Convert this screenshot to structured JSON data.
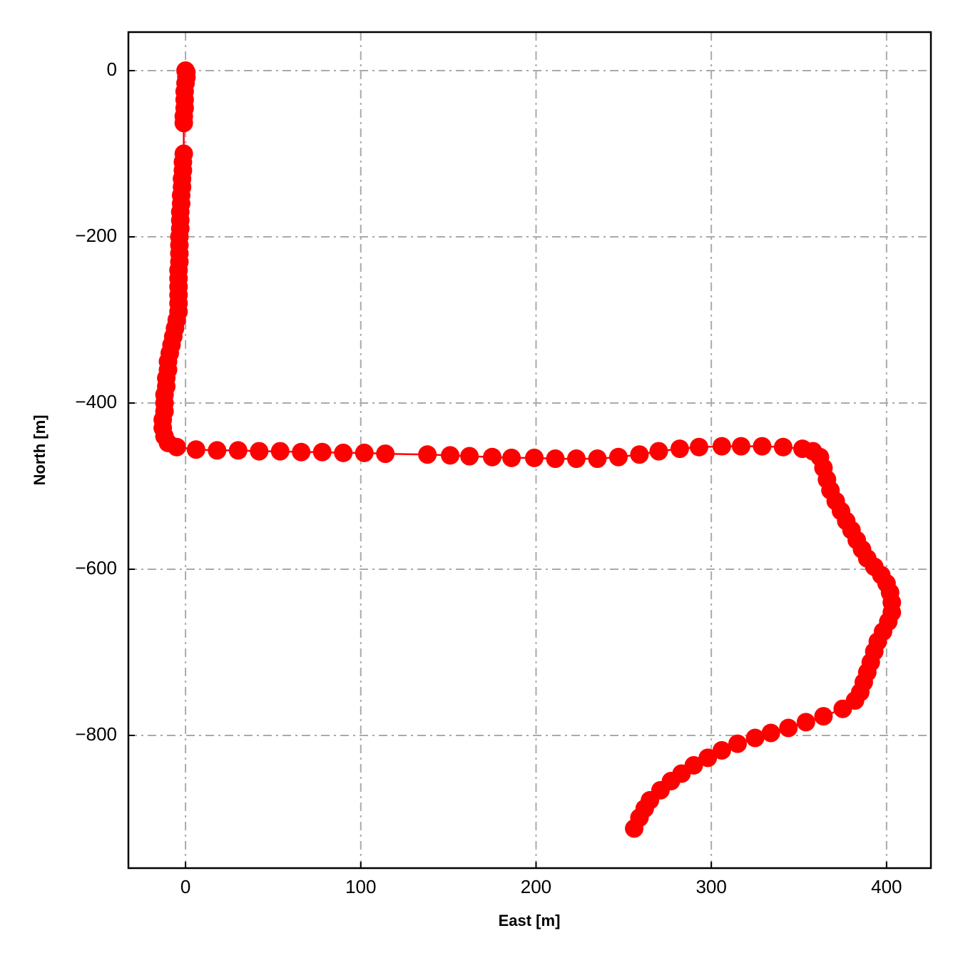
{
  "chart_data": {
    "type": "line",
    "xlabel": "East [m]",
    "ylabel": "North [m]",
    "color": "#ff0000",
    "markers": true,
    "grid": true,
    "xlim": [
      -32.6,
      425.3
    ],
    "ylim": [
      -959.7,
      46.4
    ],
    "xticks": [
      0,
      100,
      200,
      300,
      400
    ],
    "yticks": [
      {
        "value": -800,
        "label": "−800"
      },
      {
        "value": -600,
        "label": "−600"
      },
      {
        "value": -400,
        "label": "−400"
      },
      {
        "value": -200,
        "label": "−200"
      },
      0
    ],
    "x": [
      0,
      0.5,
      0.5,
      0,
      -0.5,
      -0.5,
      -0.5,
      -1,
      -1,
      -1,
      -1.5,
      -1.5,
      -2,
      -2,
      -2.5,
      -2.5,
      -3,
      -3,
      -3,
      -3.5,
      -3.5,
      -3.5,
      -3.5,
      -4,
      -4,
      -4,
      -4,
      -4,
      -4,
      -5,
      -6,
      -7,
      -8,
      -9,
      -10,
      -10,
      -11,
      -11,
      -12,
      -12,
      -12,
      -13,
      -13,
      -12,
      -10,
      -5,
      6,
      18,
      30,
      42,
      54,
      66,
      78,
      90,
      102,
      114,
      138,
      151,
      162,
      175,
      186,
      199,
      211,
      223,
      235,
      247,
      259,
      270,
      282,
      293,
      306,
      317,
      329,
      341,
      352,
      358,
      362,
      364,
      366,
      368,
      371,
      374,
      377,
      380,
      383,
      386,
      389,
      393,
      397,
      400,
      402,
      403,
      403,
      401,
      398,
      395,
      393,
      391,
      389,
      387,
      385,
      382,
      375,
      364,
      354,
      344,
      334,
      325,
      315,
      306,
      298,
      290,
      283,
      277,
      271,
      265,
      262,
      259,
      256
    ],
    "values": [
      0,
      -2,
      -8,
      -15,
      -25,
      -35,
      -45,
      -55,
      -63,
      -100,
      -110,
      -120,
      -130,
      -140,
      -150,
      -160,
      -170,
      -180,
      -190,
      -200,
      -210,
      -220,
      -230,
      -240,
      -250,
      -260,
      -270,
      -280,
      -290,
      -300,
      -310,
      -320,
      -330,
      -340,
      -350,
      -360,
      -370,
      -380,
      -390,
      -400,
      -410,
      -420,
      -430,
      -440,
      -448,
      -453,
      -456,
      -457,
      -457,
      -458,
      -458,
      -459,
      -459,
      -460,
      -460,
      -461,
      -462,
      -463,
      -464,
      -465,
      -466,
      -466,
      -467,
      -467,
      -467,
      -465,
      -462,
      -458,
      -455,
      -453,
      -452,
      -452,
      -452,
      -453,
      -455,
      -458,
      -465,
      -478,
      -492,
      -505,
      -518,
      -530,
      -542,
      -553,
      -565,
      -576,
      -587,
      -597,
      -607,
      -617,
      -628,
      -640,
      -652,
      -663,
      -675,
      -687,
      -699,
      -712,
      -724,
      -736,
      -748,
      -758,
      -768,
      -777,
      -784,
      -791,
      -797,
      -803,
      -810,
      -818,
      -827,
      -836,
      -846,
      -855,
      -866,
      -878,
      -888,
      -899,
      -912
    ]
  }
}
